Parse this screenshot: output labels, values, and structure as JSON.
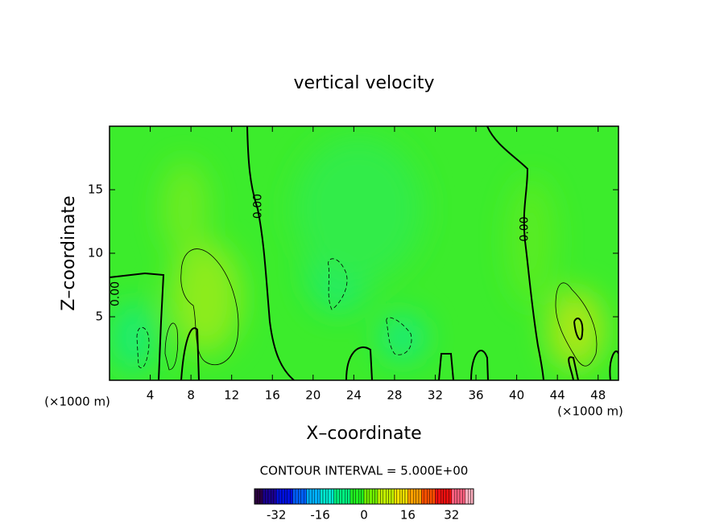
{
  "chart_data": {
    "type": "contour",
    "title": "vertical velocity",
    "x_label": "X–coordinate",
    "y_label": "Z–coordinate",
    "x_unit_label": "(×1000 m)",
    "y_unit_label": "(×1000 m)",
    "xlim": [
      0,
      50
    ],
    "xticks": [
      4,
      8,
      12,
      16,
      20,
      24,
      28,
      32,
      36,
      40,
      44,
      48
    ],
    "ylim": [
      0,
      20
    ],
    "yticks": [
      5,
      10,
      15
    ],
    "contour_labels": [
      {
        "text": "0.00",
        "x": 14.6,
        "z": 13.7
      },
      {
        "text": "0.00",
        "x": 40.8,
        "z": 11.9
      },
      {
        "text": "0.00",
        "x": 0.6,
        "z": 6.8
      }
    ],
    "contour_interval_label": "CONTOUR INTERVAL = 5.000E+00",
    "colorbar": {
      "lim": [
        -40,
        40
      ],
      "ticks": [
        -32,
        -16,
        0,
        16,
        32
      ],
      "colors": [
        "#2a0040",
        "#1a0090",
        "#0010e0",
        "#0060ff",
        "#00b0ff",
        "#00e8d0",
        "#00f080",
        "#20f020",
        "#70f000",
        "#c0f000",
        "#f0e000",
        "#ffa000",
        "#ff5000",
        "#f01010",
        "#ff6080",
        "#ffb0c0"
      ]
    }
  }
}
